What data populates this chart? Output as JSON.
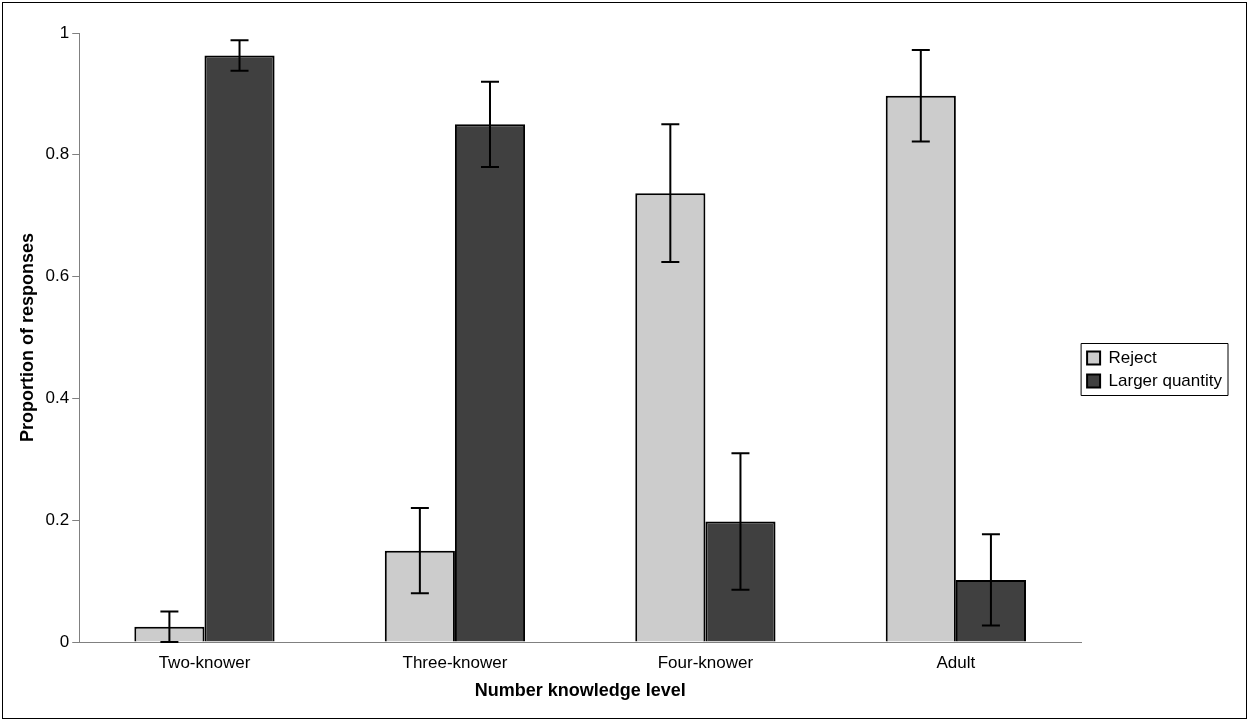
{
  "chart_data": {
    "type": "bar",
    "xlabel": "Number knowledge level",
    "ylabel": "Proportion of responses",
    "categories": [
      "Two-knower",
      "Three-knower",
      "Four-knower",
      "Adult"
    ],
    "series": [
      {
        "name": "Reject",
        "color": "#cccccc",
        "values": [
          0.025,
          0.15,
          0.737,
          0.897
        ],
        "errors": [
          0.025,
          0.07,
          0.113,
          0.075
        ]
      },
      {
        "name": "Larger quantity",
        "color": "#404040",
        "values": [
          0.963,
          0.85,
          0.198,
          0.102
        ],
        "errors": [
          0.025,
          0.07,
          0.112,
          0.075
        ]
      }
    ],
    "ylim": [
      0,
      1
    ],
    "yticks": [
      0,
      0.2,
      0.4,
      0.6,
      0.8,
      1
    ],
    "grid": false,
    "legend": "right"
  }
}
